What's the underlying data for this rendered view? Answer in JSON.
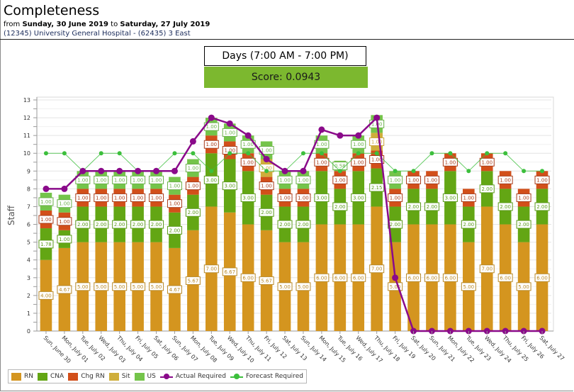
{
  "header": {
    "title": "Completeness",
    "from_label": "from",
    "start_date": "Sunday, 30 June 2019",
    "to_label": "to",
    "end_date": "Saturday, 27 July 2019",
    "location": "(12345) University General Hospital - (62435) 3 East"
  },
  "shift": {
    "label": "Days (7:00 AM - 7:00 PM)"
  },
  "score": {
    "label": "Score: 0.0943",
    "color": "#7cb82f"
  },
  "chart_data": {
    "type": "bar",
    "stacked": true,
    "title": "",
    "xlabel": "",
    "ylabel": "Staff",
    "ylim": [
      0,
      13
    ],
    "yticks": [
      0,
      1,
      2,
      3,
      4,
      5,
      6,
      7,
      8,
      9,
      10,
      11,
      12,
      13
    ],
    "grid": true,
    "legend_position": "bottom-left",
    "categories": [
      "Sun, June 30",
      "Mon, July 01",
      "Tue, July 02",
      "Wed, July 03",
      "Thu, July 04",
      "Fri, July 05",
      "Sat, July 06",
      "Sun, July 07",
      "Mon, July 08",
      "Tue, July 09",
      "Wed, July 10",
      "Thu, July 11",
      "Fri, July 12",
      "Sat, July 13",
      "Sun, July 14",
      "Mon, July 15",
      "Tue, July 16",
      "Wed, July 17",
      "Thu, July 18",
      "Fri, July 19",
      "Sat, July 20",
      "Sun, July 21",
      "Mon, July 22",
      "Tue, July 23",
      "Wed, July 24",
      "Thu, July 25",
      "Fri, July 26",
      "Sat, July 27"
    ],
    "series": [
      {
        "name": "RN",
        "kind": "bar",
        "color": "#d4951f",
        "label_border": "#b88a2a",
        "values": [
          4.0,
          4.67,
          5.0,
          5.0,
          5.0,
          5.0,
          5.0,
          4.67,
          5.67,
          7.0,
          6.67,
          6.0,
          5.67,
          5.0,
          5.0,
          6.0,
          6.0,
          6.0,
          7.0,
          5.0,
          6.0,
          6.0,
          6.0,
          5.0,
          7.0,
          6.0,
          5.0,
          6.0
        ]
      },
      {
        "name": "CNA",
        "kind": "bar",
        "color": "#63a614",
        "label_border": "#5a9a1a",
        "values": [
          1.78,
          1.0,
          2.0,
          2.0,
          2.0,
          2.0,
          2.0,
          2.0,
          2.0,
          3.0,
          3.0,
          3.0,
          2.0,
          2.0,
          2.0,
          3.0,
          2.0,
          3.0,
          2.15,
          2.0,
          2.0,
          2.0,
          3.0,
          2.0,
          2.0,
          2.0,
          2.0,
          2.0
        ]
      },
      {
        "name": "Chg RN",
        "kind": "bar",
        "color": "#d24f1a",
        "label_border": "#a83c1a",
        "values": [
          1.0,
          1.0,
          1.0,
          1.0,
          1.0,
          1.0,
          1.0,
          1.0,
          1.0,
          1.0,
          1.0,
          1.0,
          1.0,
          1.0,
          1.0,
          1.0,
          1.0,
          1.0,
          1.0,
          1.0,
          1.0,
          1.0,
          1.0,
          1.0,
          1.0,
          1.0,
          1.0,
          1.0
        ]
      },
      {
        "name": "Sit",
        "kind": "bar",
        "color": "#cfae3a",
        "label_border": "#c9a43a",
        "values": [
          0,
          0,
          0,
          0,
          0,
          0,
          0,
          0,
          0,
          0,
          0,
          0,
          1.0,
          0,
          0,
          0,
          0,
          0,
          1.0,
          0,
          0,
          0,
          0,
          0,
          0,
          0,
          0,
          0
        ]
      },
      {
        "name": "US",
        "kind": "bar",
        "color": "#74c44a",
        "label_border": "#6ab04a",
        "values": [
          1.0,
          1.0,
          1.0,
          1.0,
          1.0,
          1.0,
          1.0,
          1.0,
          1.0,
          1.0,
          1.0,
          1.0,
          1.0,
          1.0,
          1.0,
          1.0,
          0.58,
          1.0,
          1.0,
          1.0,
          0,
          0,
          0,
          0,
          0,
          0,
          0,
          0
        ]
      },
      {
        "name": "Actual Required",
        "kind": "line",
        "color": "#8a0a8a",
        "values": [
          8,
          8,
          9,
          9,
          9,
          9,
          9,
          9,
          10.67,
          12,
          11.67,
          11,
          9.67,
          9,
          9,
          11.33,
          11,
          11,
          12,
          3,
          0,
          0,
          0,
          0,
          0,
          0,
          0,
          0
        ]
      },
      {
        "name": "Forecast Required",
        "kind": "line",
        "color": "#3cbf3c",
        "values": [
          10,
          10,
          9,
          10,
          10,
          9,
          9,
          10,
          10,
          9,
          10,
          10,
          9,
          9,
          10,
          10,
          9,
          10,
          10,
          9,
          9,
          10,
          10,
          9,
          10,
          10,
          9,
          9
        ]
      }
    ]
  }
}
